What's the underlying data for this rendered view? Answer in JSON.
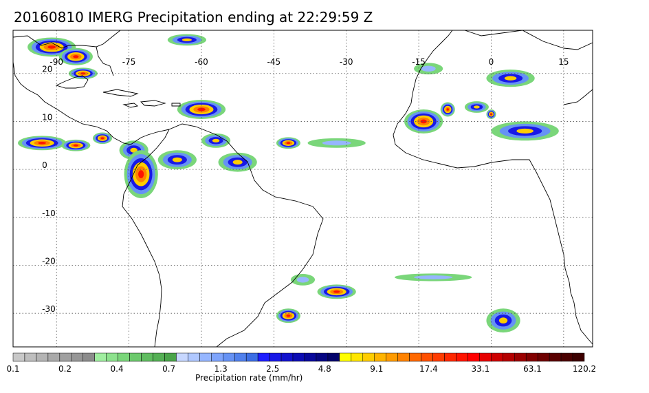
{
  "title": "20160810 IMERG Precipitation ending at 22:29:59 Z",
  "map": {
    "projection": "equirectangular",
    "lon_range": [
      -99,
      21
    ],
    "lat_range": [
      -37,
      29
    ],
    "lon_ticks": [
      -90,
      -75,
      -60,
      -45,
      -30,
      -15,
      0,
      15
    ],
    "lat_ticks": [
      20,
      10,
      0,
      -10,
      -20,
      -30
    ],
    "gridlines": "dotted"
  },
  "colorbar": {
    "label": "Precipitation rate (mm/hr)",
    "tick_labels": [
      "0.1",
      "0.2",
      "0.4",
      "0.7",
      "1.3",
      "2.5",
      "4.8",
      "9.1",
      "17.4",
      "33.1",
      "63.1",
      "120.2"
    ],
    "colors": [
      "#c8c8c8",
      "#bebebe",
      "#b4b4b4",
      "#aaaaaa",
      "#a0a0a0",
      "#969696",
      "#8c8c8c",
      "#a0eea0",
      "#8de28d",
      "#7ad67a",
      "#6cc96c",
      "#60bd60",
      "#55b055",
      "#4aa44a",
      "#c7d7ff",
      "#b0c8ff",
      "#96b6ff",
      "#7ea4fc",
      "#6692f4",
      "#5080ec",
      "#3c6ee4",
      "#1e1eff",
      "#1818e6",
      "#1212cd",
      "#0c0cb4",
      "#08089b",
      "#050582",
      "#03036a",
      "#ffff00",
      "#ffe600",
      "#ffcd00",
      "#ffb400",
      "#ff9b00",
      "#ff8200",
      "#ff6900",
      "#ff5000",
      "#ff3c00",
      "#ff2800",
      "#ff1400",
      "#ff0000",
      "#e60000",
      "#cd0000",
      "#b40000",
      "#9b0000",
      "#820000",
      "#6e0000",
      "#5a0000",
      "#4a0000",
      "#3c0000"
    ]
  },
  "precip_regions": [
    {
      "lon": -91,
      "lat": 25.5,
      "rx": 5,
      "ry": 2,
      "level": "heavy"
    },
    {
      "lon": -86,
      "lat": 23.5,
      "rx": 3.5,
      "ry": 1.8,
      "level": "heavy"
    },
    {
      "lon": -84.5,
      "lat": 20,
      "rx": 3,
      "ry": 1.2,
      "level": "heavy"
    },
    {
      "lon": -63,
      "lat": 27,
      "rx": 4,
      "ry": 1.2,
      "level": "medium"
    },
    {
      "lon": -60,
      "lat": 12.5,
      "rx": 5,
      "ry": 2,
      "level": "heavy"
    },
    {
      "lon": -93,
      "lat": 5.5,
      "rx": 5,
      "ry": 1.5,
      "level": "heavy"
    },
    {
      "lon": -86,
      "lat": 5,
      "rx": 3,
      "ry": 1.2,
      "level": "heavy"
    },
    {
      "lon": -80.5,
      "lat": 6.5,
      "rx": 2,
      "ry": 1.2,
      "level": "heavy"
    },
    {
      "lon": -74,
      "lat": 4,
      "rx": 3,
      "ry": 2,
      "level": "medium"
    },
    {
      "lon": -72.5,
      "lat": -1,
      "rx": 3.5,
      "ry": 5,
      "level": "heavy"
    },
    {
      "lon": -65,
      "lat": 2,
      "rx": 4,
      "ry": 2,
      "level": "medium"
    },
    {
      "lon": -57,
      "lat": 6,
      "rx": 3,
      "ry": 1.5,
      "level": "medium"
    },
    {
      "lon": -52.5,
      "lat": 1.5,
      "rx": 4,
      "ry": 2,
      "level": "medium"
    },
    {
      "lon": -42,
      "lat": 5.5,
      "rx": 2.5,
      "ry": 1.2,
      "level": "heavy"
    },
    {
      "lon": -32,
      "lat": 5.5,
      "rx": 6,
      "ry": 1,
      "level": "light"
    },
    {
      "lon": -14,
      "lat": 10,
      "rx": 4,
      "ry": 2.5,
      "level": "heavy"
    },
    {
      "lon": -9,
      "lat": 12.5,
      "rx": 1.5,
      "ry": 1.5,
      "level": "heavy"
    },
    {
      "lon": -3,
      "lat": 13,
      "rx": 2.5,
      "ry": 1.2,
      "level": "medium"
    },
    {
      "lon": 0,
      "lat": 11.5,
      "rx": 1,
      "ry": 1,
      "level": "heavy"
    },
    {
      "lon": 7,
      "lat": 8,
      "rx": 7,
      "ry": 2,
      "level": "medium"
    },
    {
      "lon": 4,
      "lat": 19,
      "rx": 5,
      "ry": 1.8,
      "level": "medium"
    },
    {
      "lon": -13,
      "lat": 21,
      "rx": 3,
      "ry": 1.2,
      "level": "light"
    },
    {
      "lon": -39,
      "lat": -23,
      "rx": 2.5,
      "ry": 1.2,
      "level": "light"
    },
    {
      "lon": -32,
      "lat": -25.5,
      "rx": 4,
      "ry": 1.5,
      "level": "heavy"
    },
    {
      "lon": -42,
      "lat": -30.5,
      "rx": 2.5,
      "ry": 1.5,
      "level": "heavy"
    },
    {
      "lon": 2.5,
      "lat": -31.5,
      "rx": 3.5,
      "ry": 2.5,
      "level": "medium"
    },
    {
      "lon": -12,
      "lat": -22.5,
      "rx": 8,
      "ry": 0.8,
      "level": "light"
    }
  ]
}
